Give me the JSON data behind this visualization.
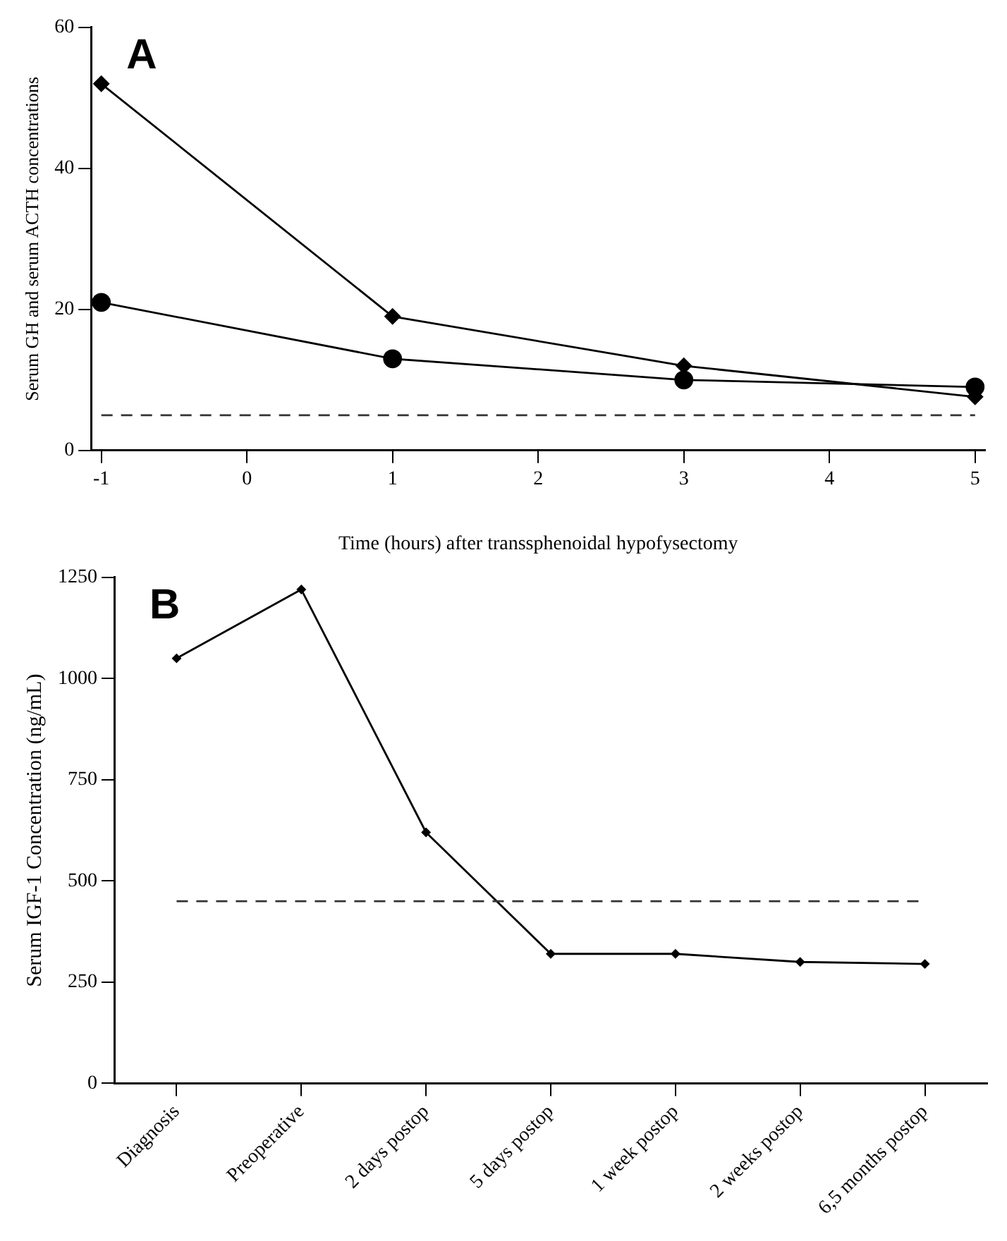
{
  "chart_data": [
    {
      "type": "line",
      "title": "A",
      "xlabel": "Time (hours) after transsphenoidal hypofysectomy",
      "ylabel": "Serum GH and serum ACTH concentrations",
      "x": [
        -1,
        1,
        3,
        5
      ],
      "xlim": [
        -1.07,
        5.07
      ],
      "xticks": [
        -1,
        0,
        1,
        2,
        3,
        4,
        5
      ],
      "ylim": [
        0,
        60
      ],
      "yticks": [
        0,
        20,
        40,
        60
      ],
      "grid": false,
      "legend": false,
      "series": [
        {
          "color": "#000000",
          "marker": "diamond",
          "values": [
            52,
            19,
            12,
            7.6
          ]
        },
        {
          "color": "#000000",
          "marker": "circle",
          "values": [
            21,
            13,
            10,
            9
          ]
        }
      ],
      "ref_lines": [
        {
          "axis": "y",
          "value": 5,
          "color": "#333333",
          "line_style": "dashed"
        }
      ]
    },
    {
      "type": "line",
      "title": "B",
      "ylabel": "Serum IGF-1 Concentration (ng/mL)",
      "categories": [
        "Diagnosis",
        "Preoperative",
        "2 days postop",
        "5 days postop",
        "1 week postop",
        "2 weeks postop",
        "6,5 months postop"
      ],
      "ylim": [
        0,
        1250
      ],
      "yticks": [
        0,
        250,
        500,
        750,
        1000,
        1250
      ],
      "grid": false,
      "legend": false,
      "marker": "diamond",
      "series": [
        {
          "color": "#000000",
          "values": [
            1050,
            1220,
            620,
            320,
            320,
            300,
            295
          ]
        }
      ],
      "ref_lines": [
        {
          "axis": "y",
          "value": 450,
          "color": "#333333",
          "line_style": "dashed"
        }
      ]
    }
  ]
}
